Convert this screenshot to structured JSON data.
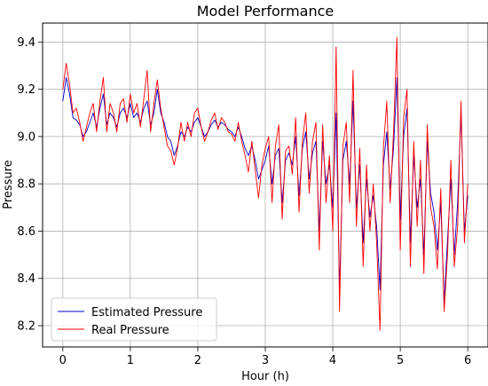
{
  "chart_data": {
    "type": "line",
    "title": "Model Performance",
    "xlabel": "Hour (h)",
    "ylabel": "Pressure",
    "xlim": [
      -0.3,
      6.3
    ],
    "ylim": [
      8.11,
      9.48
    ],
    "xticks": [
      0,
      1,
      2,
      3,
      4,
      5,
      6
    ],
    "yticks": [
      8.2,
      8.4,
      8.6,
      8.8,
      9.0,
      9.2,
      9.4
    ],
    "grid": true,
    "legend": {
      "placement": "bottom-left"
    },
    "series": [
      {
        "name": "Estimated Pressure",
        "color": "#0000cc",
        "x": [
          0,
          0.05,
          0.1,
          0.15,
          0.2,
          0.25,
          0.3,
          0.35,
          0.4,
          0.45,
          0.5,
          0.55,
          0.6,
          0.65,
          0.7,
          0.75,
          0.8,
          0.85,
          0.9,
          0.95,
          1.0,
          1.05,
          1.1,
          1.15,
          1.2,
          1.25,
          1.3,
          1.35,
          1.4,
          1.45,
          1.5,
          1.55,
          1.6,
          1.65,
          1.7,
          1.75,
          1.8,
          1.85,
          1.9,
          1.95,
          2.0,
          2.05,
          2.1,
          2.15,
          2.2,
          2.25,
          2.3,
          2.35,
          2.4,
          2.45,
          2.5,
          2.55,
          2.6,
          2.65,
          2.7,
          2.75,
          2.8,
          2.85,
          2.9,
          2.95,
          3.0,
          3.05,
          3.1,
          3.15,
          3.2,
          3.25,
          3.3,
          3.35,
          3.4,
          3.45,
          3.5,
          3.55,
          3.6,
          3.65,
          3.7,
          3.75,
          3.8,
          3.85,
          3.9,
          3.95,
          4.0,
          4.05,
          4.1,
          4.15,
          4.2,
          4.25,
          4.3,
          4.35,
          4.4,
          4.45,
          4.5,
          4.55,
          4.6,
          4.65,
          4.7,
          4.75,
          4.8,
          4.85,
          4.9,
          4.95,
          5.0,
          5.05,
          5.1,
          5.15,
          5.2,
          5.25,
          5.3,
          5.35,
          5.4,
          5.45,
          5.5,
          5.55,
          5.6,
          5.65,
          5.7,
          5.75,
          5.8,
          5.85,
          5.9,
          5.95,
          6.0
        ],
        "y": [
          9.15,
          9.25,
          9.18,
          9.08,
          9.07,
          9.05,
          9.0,
          9.02,
          9.06,
          9.1,
          9.04,
          9.12,
          9.18,
          9.05,
          9.1,
          9.08,
          9.04,
          9.1,
          9.12,
          9.08,
          9.14,
          9.08,
          9.1,
          9.06,
          9.12,
          9.15,
          9.05,
          9.1,
          9.2,
          9.1,
          9.06,
          9.0,
          8.98,
          8.92,
          8.96,
          9.02,
          9.0,
          9.04,
          9.02,
          9.06,
          9.08,
          9.04,
          9.0,
          9.02,
          9.05,
          9.07,
          9.04,
          9.06,
          9.05,
          9.03,
          9.02,
          9.0,
          9.04,
          9.0,
          8.95,
          8.92,
          8.96,
          8.9,
          8.82,
          8.86,
          8.9,
          8.96,
          8.8,
          8.92,
          8.95,
          8.72,
          8.9,
          8.93,
          8.88,
          9.0,
          8.75,
          8.95,
          9.02,
          8.82,
          8.93,
          8.98,
          8.6,
          8.98,
          8.8,
          8.88,
          8.7,
          9.1,
          8.35,
          8.9,
          8.98,
          8.8,
          9.15,
          8.7,
          8.88,
          8.55,
          8.82,
          8.66,
          8.75,
          8.62,
          8.35,
          8.88,
          9.02,
          8.78,
          8.95,
          9.25,
          8.65,
          9.0,
          9.12,
          8.55,
          8.92,
          8.7,
          8.82,
          8.5,
          8.98,
          8.76,
          8.68,
          8.52,
          8.72,
          8.3,
          8.56,
          8.82,
          8.5,
          8.72,
          9.1,
          8.6,
          8.75
        ]
      },
      {
        "name": "Real Pressure",
        "color": "#ff0000",
        "x": [
          0,
          0.05,
          0.1,
          0.15,
          0.2,
          0.25,
          0.3,
          0.35,
          0.4,
          0.45,
          0.5,
          0.55,
          0.6,
          0.65,
          0.7,
          0.75,
          0.8,
          0.85,
          0.9,
          0.95,
          1.0,
          1.05,
          1.1,
          1.15,
          1.2,
          1.25,
          1.3,
          1.35,
          1.4,
          1.45,
          1.5,
          1.55,
          1.6,
          1.65,
          1.7,
          1.75,
          1.8,
          1.85,
          1.9,
          1.95,
          2.0,
          2.05,
          2.1,
          2.15,
          2.2,
          2.25,
          2.3,
          2.35,
          2.4,
          2.45,
          2.5,
          2.55,
          2.6,
          2.65,
          2.7,
          2.75,
          2.8,
          2.85,
          2.9,
          2.95,
          3.0,
          3.05,
          3.1,
          3.15,
          3.2,
          3.25,
          3.3,
          3.35,
          3.4,
          3.45,
          3.5,
          3.55,
          3.6,
          3.65,
          3.7,
          3.75,
          3.8,
          3.85,
          3.9,
          3.95,
          4.0,
          4.05,
          4.1,
          4.15,
          4.2,
          4.25,
          4.3,
          4.35,
          4.4,
          4.45,
          4.5,
          4.55,
          4.6,
          4.65,
          4.7,
          4.75,
          4.8,
          4.85,
          4.9,
          4.95,
          5.0,
          5.05,
          5.1,
          5.15,
          5.2,
          5.25,
          5.3,
          5.35,
          5.4,
          5.45,
          5.5,
          5.55,
          5.6,
          5.65,
          5.7,
          5.75,
          5.8,
          5.85,
          5.9,
          5.95,
          6.0
        ],
        "y": [
          9.2,
          9.31,
          9.22,
          9.1,
          9.12,
          9.06,
          8.98,
          9.04,
          9.1,
          9.14,
          9.02,
          9.15,
          9.25,
          9.02,
          9.14,
          9.1,
          9.02,
          9.14,
          9.16,
          9.06,
          9.18,
          9.1,
          9.14,
          9.04,
          9.16,
          9.28,
          9.02,
          9.14,
          9.24,
          9.12,
          9.04,
          8.96,
          8.94,
          8.88,
          8.95,
          9.06,
          8.98,
          9.06,
          9.0,
          9.1,
          9.12,
          9.04,
          8.98,
          9.02,
          9.07,
          9.1,
          9.03,
          9.08,
          9.06,
          9.02,
          9.01,
          8.98,
          9.06,
          8.98,
          8.92,
          8.85,
          8.98,
          8.86,
          8.74,
          8.88,
          8.95,
          9.0,
          8.72,
          8.96,
          9.05,
          8.65,
          8.94,
          8.96,
          8.84,
          9.08,
          8.68,
          8.98,
          9.1,
          8.76,
          8.98,
          9.06,
          8.52,
          9.05,
          8.72,
          8.92,
          8.6,
          9.38,
          8.26,
          8.96,
          9.06,
          8.72,
          9.28,
          8.62,
          8.95,
          8.45,
          8.88,
          8.6,
          8.8,
          8.55,
          8.18,
          8.95,
          9.15,
          8.72,
          9.02,
          9.42,
          8.52,
          9.08,
          9.2,
          8.45,
          8.98,
          8.62,
          8.9,
          8.42,
          9.05,
          8.7,
          8.62,
          8.44,
          8.78,
          8.26,
          8.5,
          8.9,
          8.45,
          8.62,
          9.15,
          8.55,
          8.8
        ]
      }
    ]
  }
}
